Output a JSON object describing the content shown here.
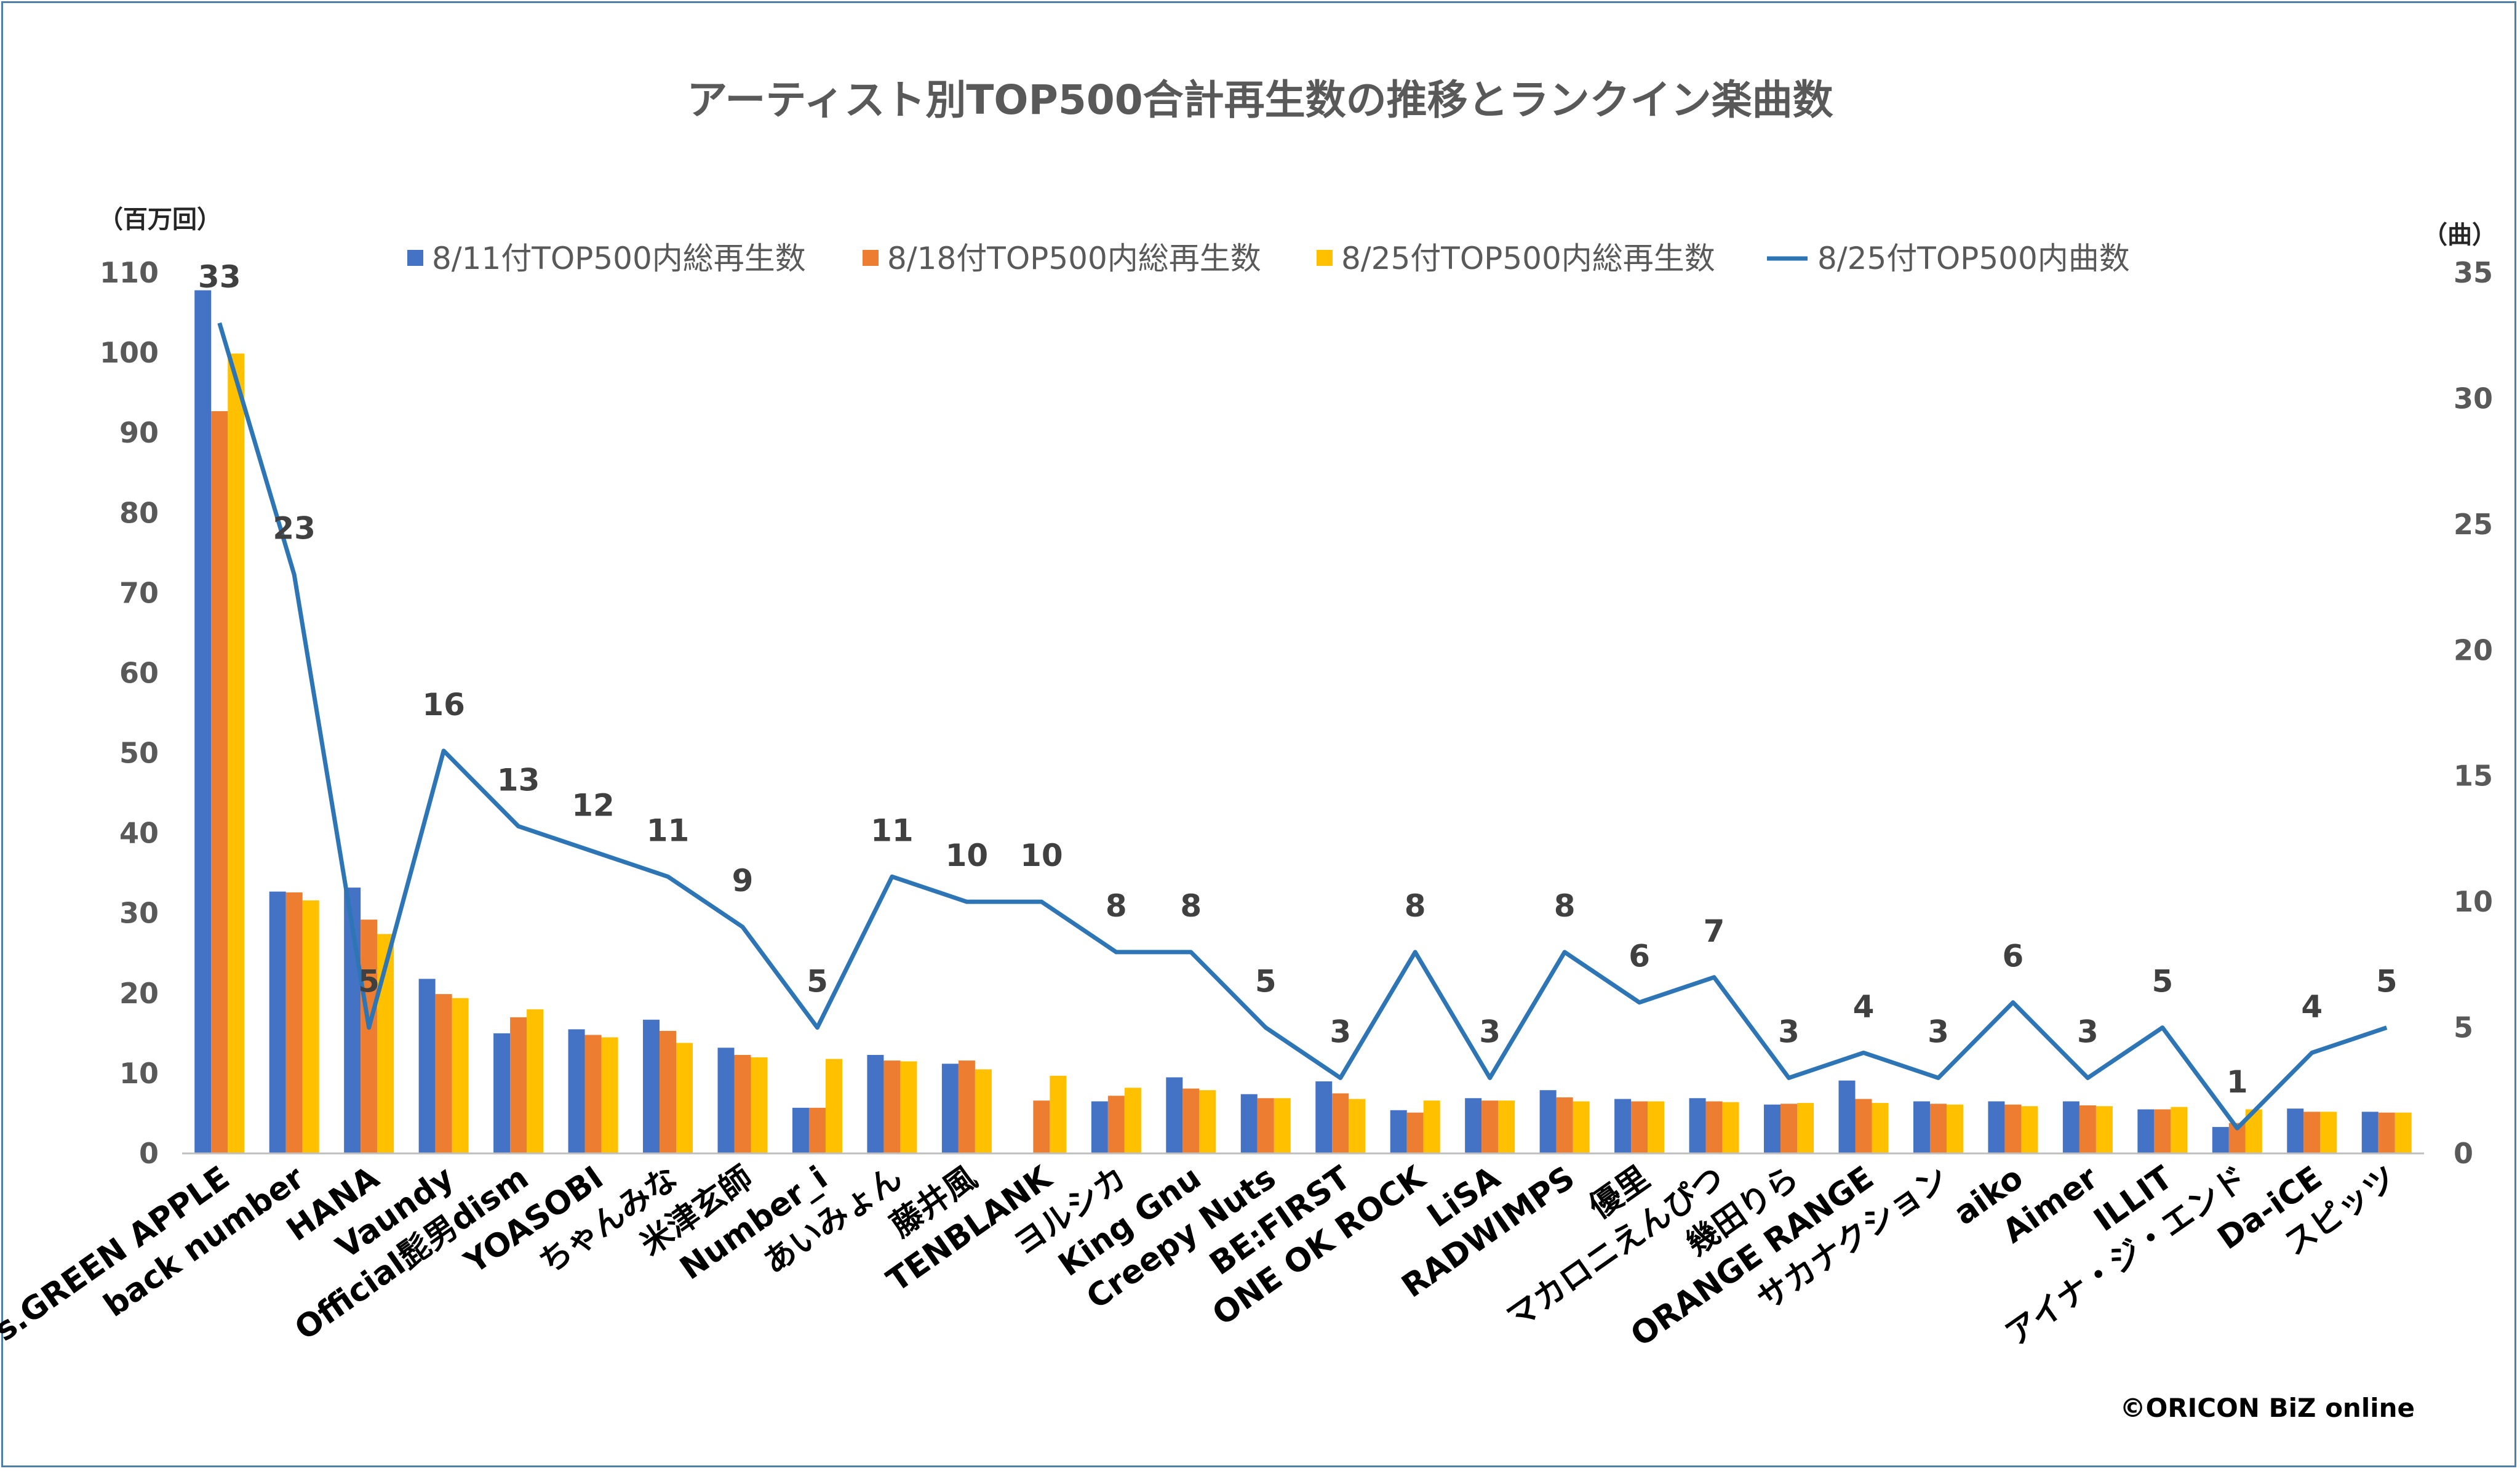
{
  "chart_data": {
    "type": "bar",
    "title": "アーティスト別TOP500合計再生数の推移とランクイン楽曲数",
    "y_left_label": "（百万回）",
    "y_right_label": "（曲）",
    "ylim_left": [
      0,
      110
    ],
    "yticks_left": [
      0,
      10,
      20,
      30,
      40,
      50,
      60,
      70,
      80,
      90,
      100,
      110
    ],
    "ylim_right": [
      0,
      35
    ],
    "yticks_right": [
      0,
      5,
      10,
      15,
      20,
      25,
      30,
      35
    ],
    "grid": false,
    "legend_position": "top",
    "credit": "©ORICON BiZ online",
    "categories": [
      "Mrs.GREEN APPLE",
      "back number",
      "HANA",
      "Vaundy",
      "Official髭男dism",
      "YOASOBI",
      "ちゃんみな",
      "米津玄師",
      "Number_i",
      "あいみょん",
      "藤井風",
      "TENBLANK",
      "ヨルシカ",
      "King Gnu",
      "Creepy Nuts",
      "BE:FIRST",
      "ONE OK ROCK",
      "LiSA",
      "RADWIMPS",
      "優里",
      "マカロニえんぴつ",
      "幾田りら",
      "ORANGE RANGE",
      "サカナクション",
      "aiko",
      "Aimer",
      "ILLIT",
      "アイナ・ジ・エンド",
      "Da-iCE",
      "スピッツ"
    ],
    "series": [
      {
        "name": "8/11付TOP500内総再生数",
        "type": "bar",
        "axis": "left",
        "color": "#4472c4",
        "values": [
          107.8,
          32.7,
          33.2,
          21.8,
          15.0,
          15.5,
          16.7,
          13.2,
          5.7,
          12.3,
          11.2,
          null,
          6.5,
          9.5,
          7.4,
          9.0,
          5.4,
          6.9,
          7.9,
          6.8,
          6.9,
          6.1,
          9.1,
          6.5,
          6.5,
          6.5,
          5.5,
          3.3,
          5.6,
          5.2
        ]
      },
      {
        "name": "8/18付TOP500内総再生数",
        "type": "bar",
        "axis": "left",
        "color": "#ed7d31",
        "values": [
          92.7,
          32.6,
          29.2,
          19.9,
          17.0,
          14.8,
          15.3,
          12.3,
          5.7,
          11.6,
          11.6,
          6.6,
          7.2,
          8.1,
          6.9,
          7.5,
          5.1,
          6.6,
          7.0,
          6.5,
          6.5,
          6.2,
          6.8,
          6.2,
          6.1,
          6.0,
          5.5,
          3.8,
          5.2,
          5.1
        ]
      },
      {
        "name": "8/25付TOP500内総再生数",
        "type": "bar",
        "axis": "left",
        "color": "#ffc000",
        "values": [
          99.9,
          31.6,
          27.4,
          19.4,
          18.0,
          14.5,
          13.8,
          12.0,
          11.8,
          11.5,
          10.5,
          9.7,
          8.2,
          7.9,
          6.9,
          6.8,
          6.6,
          6.6,
          6.5,
          6.5,
          6.4,
          6.3,
          6.3,
          6.1,
          5.9,
          5.9,
          5.8,
          5.5,
          5.2,
          5.1
        ]
      },
      {
        "name": "8/25付TOP500内曲数",
        "type": "line",
        "axis": "right",
        "color": "#2e75b6",
        "values": [
          33,
          23,
          5,
          16,
          13,
          12,
          11,
          9,
          5,
          11,
          10,
          10,
          8,
          8,
          5,
          3,
          8,
          3,
          8,
          6,
          7,
          3,
          4,
          3,
          6,
          3,
          5,
          1,
          4,
          5
        ]
      }
    ]
  },
  "data_labels": [
    "33",
    "23",
    "5",
    "16",
    "13",
    "12",
    "11",
    "9",
    "5",
    "11",
    "10",
    "10",
    "8",
    "8",
    "5",
    "3",
    "8",
    "3",
    "8",
    "6",
    "7",
    "3",
    "4",
    "3",
    "6",
    "3",
    "5",
    "1",
    "4",
    "5"
  ]
}
